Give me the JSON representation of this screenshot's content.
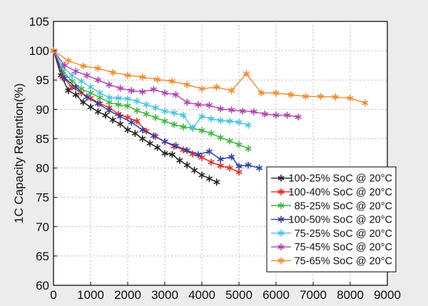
{
  "chart_data": {
    "type": "line",
    "title": "",
    "xlabel": "",
    "ylabel": "1C Capacity Retention(%)",
    "xlim": [
      0,
      9000
    ],
    "ylim": [
      60,
      105
    ],
    "xticks": [
      0,
      1000,
      2000,
      3000,
      4000,
      5000,
      6000,
      7000,
      8000,
      9000
    ],
    "yticks": [
      60,
      65,
      70,
      75,
      80,
      85,
      90,
      95,
      100,
      105
    ],
    "xtick_labels": [
      "0",
      "1000",
      "2000",
      "3000",
      "4000",
      "5000",
      "6000",
      "7000",
      "8000",
      "9000"
    ],
    "ytick_labels": [
      "60",
      "65",
      "70",
      "75",
      "80",
      "85",
      "90",
      "95",
      "100",
      "105"
    ],
    "grid": true,
    "legend_position": "bottom-right",
    "series": [
      {
        "name": "100-25% SoC @ 20°C",
        "color": "#222222",
        "x": [
          0,
          200,
          400,
          600,
          800,
          1000,
          1200,
          1400,
          1600,
          1800,
          2000,
          2200,
          2400,
          2600,
          2800,
          3000,
          3200,
          3400,
          3600,
          3800,
          4000,
          4200,
          4400
        ],
        "y": [
          100,
          95.8,
          93.2,
          92.5,
          91.2,
          90.4,
          89.6,
          89.0,
          88.2,
          87.5,
          86.5,
          85.9,
          85.0,
          84.2,
          83.5,
          82.5,
          82.3,
          81.3,
          80.5,
          79.6,
          78.8,
          78.2,
          77.6
        ]
      },
      {
        "name": "100-40% SoC @ 20°C",
        "color": "#e8261e",
        "x": [
          0,
          250,
          500,
          750,
          1000,
          1250,
          1500,
          1750,
          2000,
          2250,
          2500,
          2750,
          3000,
          3250,
          3500,
          3750,
          4000,
          4250,
          4500,
          4750,
          5000
        ],
        "y": [
          100,
          95.5,
          93.8,
          92.8,
          91.9,
          91.0,
          90.3,
          89.2,
          88.6,
          88.0,
          86.3,
          85.4,
          84.5,
          83.7,
          83.1,
          82.4,
          81.8,
          81.0,
          80.4,
          80.0,
          79.3
        ]
      },
      {
        "name": "85-25% SoC @ 20°C",
        "color": "#3db53a",
        "x": [
          0,
          250,
          500,
          750,
          1000,
          1250,
          1500,
          1750,
          2000,
          2250,
          2500,
          2750,
          3000,
          3250,
          3500,
          3750,
          4000,
          4250,
          4500,
          4750,
          5000,
          5250
        ],
        "y": [
          100,
          96.5,
          94.8,
          93.5,
          92.8,
          92.0,
          91.2,
          90.8,
          90.6,
          89.8,
          89.2,
          88.6,
          88.0,
          87.4,
          87.0,
          86.8,
          86.4,
          85.9,
          85.2,
          84.6,
          84.0,
          83.3
        ]
      },
      {
        "name": "100-50% SoC @ 20°C",
        "color": "#2b3ea8",
        "x": [
          0,
          300,
          600,
          900,
          1200,
          1500,
          1800,
          2100,
          2400,
          2700,
          3000,
          3300,
          3600,
          3900,
          4200,
          4500,
          4800,
          5000,
          5250,
          5550
        ],
        "y": [
          100,
          95.3,
          93.8,
          92.1,
          91.0,
          89.8,
          88.8,
          87.8,
          86.5,
          85.5,
          84.5,
          83.8,
          83.0,
          82.3,
          82.8,
          81.5,
          81.9,
          80.3,
          80.5,
          80.0
        ]
      },
      {
        "name": "75-25% SoC @ 20°C",
        "color": "#46c4e0",
        "x": [
          0,
          250,
          500,
          750,
          1000,
          1250,
          1500,
          1750,
          2000,
          2250,
          2500,
          2750,
          3000,
          3250,
          3500,
          3750,
          4000,
          4250,
          4500,
          4750,
          5000,
          5250
        ],
        "y": [
          100,
          97.2,
          95.8,
          94.8,
          93.8,
          92.8,
          92.0,
          91.9,
          91.8,
          91.4,
          90.8,
          90.3,
          89.7,
          89.4,
          89.0,
          86.8,
          88.8,
          88.4,
          88.1,
          88.0,
          87.8,
          87.3
        ]
      },
      {
        "name": "75-45% SoC @ 20°C",
        "color": "#b040b0",
        "x": [
          0,
          300,
          600,
          900,
          1200,
          1500,
          1800,
          2100,
          2400,
          2700,
          3000,
          3300,
          3600,
          3900,
          4200,
          4500,
          4800,
          5100,
          5400,
          5700,
          6000,
          6300,
          6600
        ],
        "y": [
          100,
          97.5,
          96.5,
          95.8,
          95.0,
          94.2,
          93.6,
          93.2,
          93.0,
          93.4,
          92.8,
          92.5,
          91.2,
          90.8,
          90.7,
          90.1,
          89.9,
          89.7,
          89.6,
          89.2,
          89.0,
          89.0,
          88.7
        ]
      },
      {
        "name": "75-65% SoC @ 20°C",
        "color": "#f08a2c",
        "x": [
          0,
          400,
          800,
          1200,
          1600,
          2000,
          2400,
          2800,
          3200,
          3600,
          4000,
          4400,
          4800,
          5200,
          5600,
          6000,
          6400,
          6800,
          7200,
          7600,
          8000,
          8400
        ],
        "y": [
          100,
          98.3,
          97.4,
          97.0,
          96.3,
          95.8,
          95.5,
          95.1,
          94.8,
          94.2,
          93.5,
          93.8,
          93.2,
          96.1,
          92.8,
          92.8,
          92.5,
          92.2,
          92.2,
          92.1,
          91.9,
          91.1
        ]
      }
    ]
  }
}
